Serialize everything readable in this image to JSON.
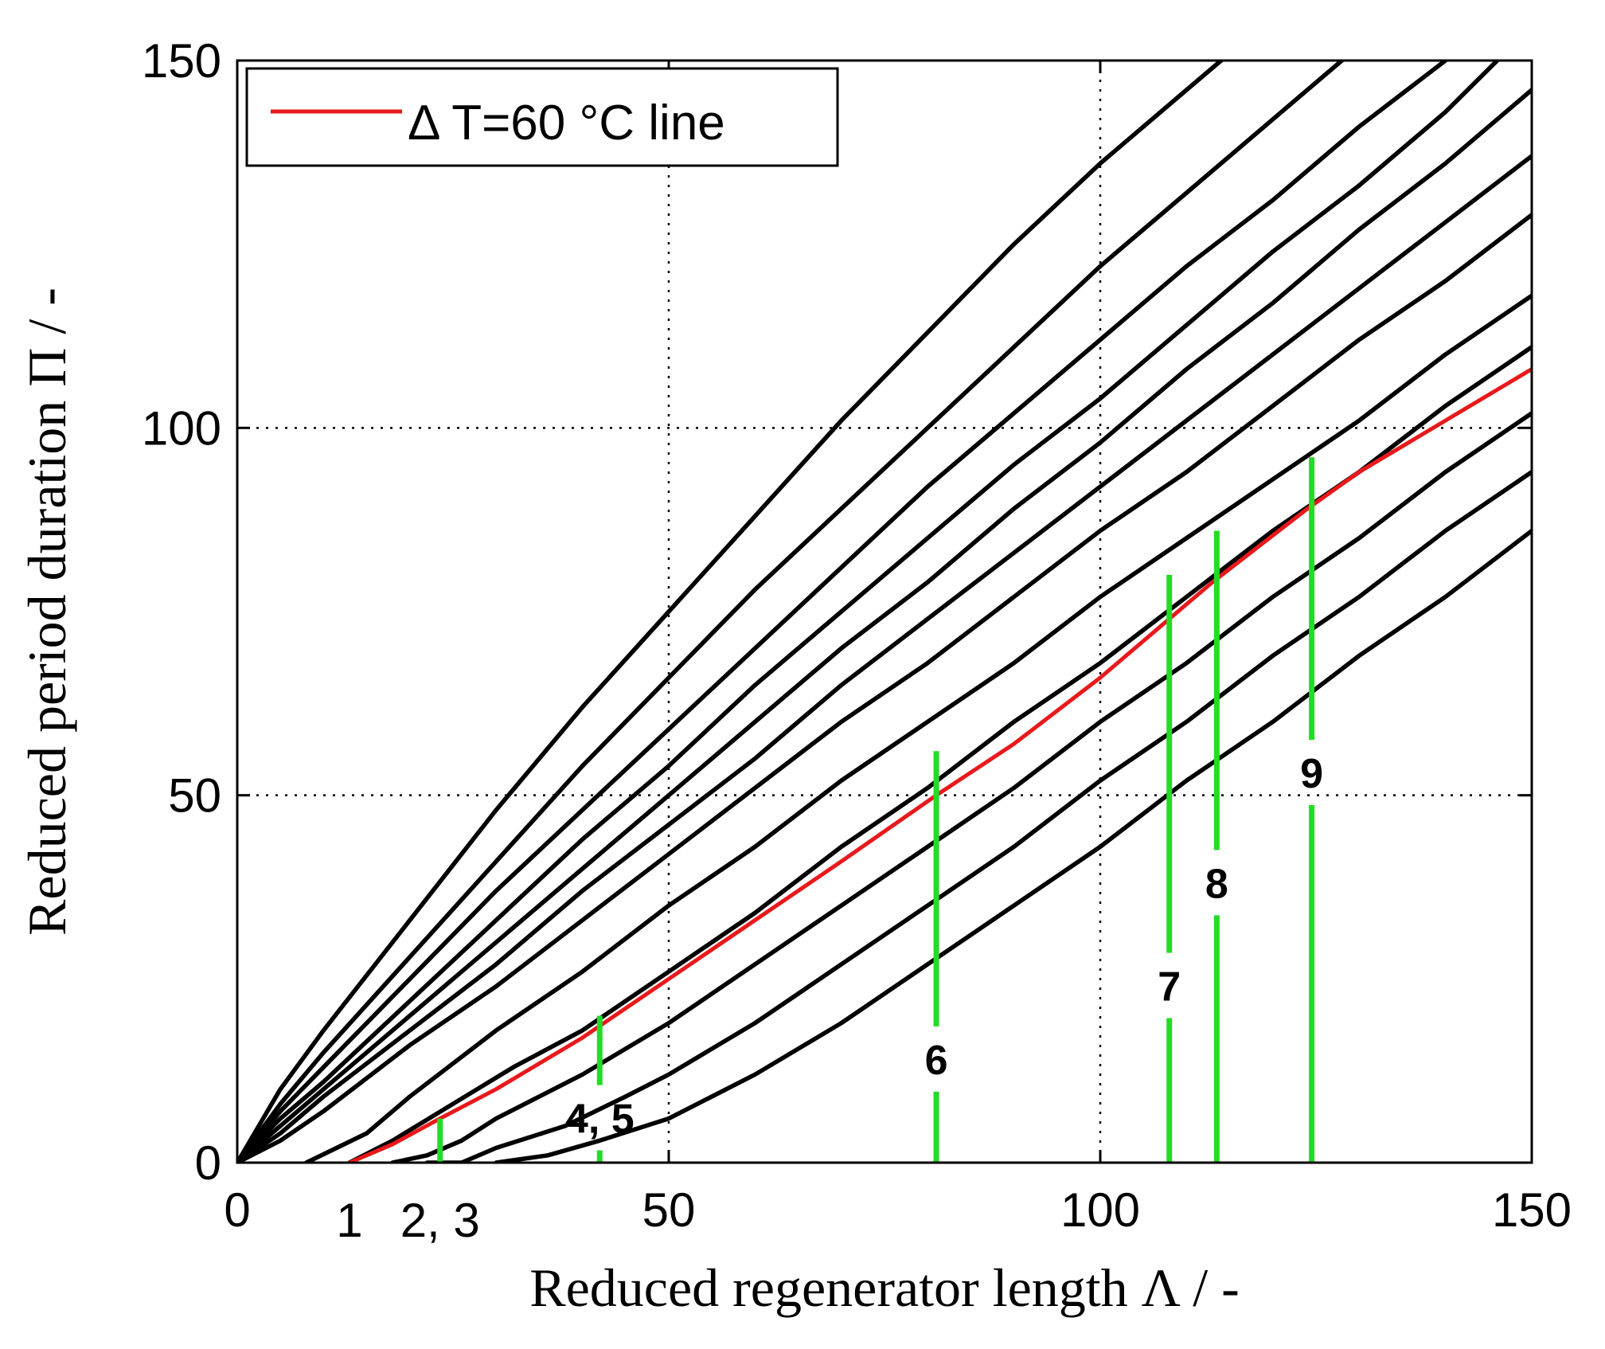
{
  "chart_data": {
    "type": "line",
    "title": "",
    "xlabel": "Reduced regenerator length Λ / -",
    "ylabel": "Reduced period duration Π / -",
    "xlim": [
      0,
      150
    ],
    "ylim": [
      0,
      150
    ],
    "xticks": [
      "0",
      "50",
      "100",
      "150"
    ],
    "xtick_values": [
      0,
      50,
      100,
      150
    ],
    "yticks": [
      "0",
      "50",
      "100",
      "150"
    ],
    "ytick_values": [
      0,
      50,
      100,
      150
    ],
    "grid": true,
    "legend": {
      "position": "top-left",
      "entries": [
        {
          "label": "Δ T=60 °C line",
          "color": "#e8191b"
        }
      ]
    },
    "colors": {
      "curves": "#000000",
      "highlight": "#e8191b",
      "markers": "#22dd22"
    },
    "series": [
      {
        "name": "curve-1",
        "color": "#000000",
        "points": [
          [
            0,
            0
          ],
          [
            5,
            10
          ],
          [
            10,
            18
          ],
          [
            20,
            33
          ],
          [
            30,
            48
          ],
          [
            40,
            62
          ],
          [
            50,
            75
          ],
          [
            60,
            88
          ],
          [
            70,
            101
          ],
          [
            80,
            113
          ],
          [
            90,
            125
          ],
          [
            100,
            136
          ],
          [
            110,
            146
          ],
          [
            114,
            150
          ]
        ]
      },
      {
        "name": "curve-2",
        "color": "#000000",
        "points": [
          [
            0,
            0
          ],
          [
            5,
            8
          ],
          [
            10,
            15
          ],
          [
            20,
            28
          ],
          [
            30,
            41
          ],
          [
            40,
            54
          ],
          [
            50,
            66
          ],
          [
            60,
            78
          ],
          [
            70,
            89
          ],
          [
            80,
            100
          ],
          [
            90,
            111
          ],
          [
            100,
            122
          ],
          [
            110,
            132
          ],
          [
            120,
            142
          ],
          [
            128,
            150
          ]
        ]
      },
      {
        "name": "curve-3",
        "color": "#000000",
        "points": [
          [
            0,
            0
          ],
          [
            5,
            7
          ],
          [
            10,
            13
          ],
          [
            20,
            25
          ],
          [
            30,
            37
          ],
          [
            40,
            48
          ],
          [
            50,
            59
          ],
          [
            60,
            70
          ],
          [
            70,
            81
          ],
          [
            80,
            92
          ],
          [
            90,
            102
          ],
          [
            100,
            112
          ],
          [
            110,
            122
          ],
          [
            120,
            131
          ],
          [
            130,
            141
          ],
          [
            140,
            150
          ]
        ]
      },
      {
        "name": "curve-4",
        "color": "#000000",
        "points": [
          [
            0,
            0
          ],
          [
            5,
            6
          ],
          [
            10,
            11
          ],
          [
            20,
            22
          ],
          [
            30,
            33
          ],
          [
            40,
            44
          ],
          [
            50,
            54
          ],
          [
            60,
            65
          ],
          [
            70,
            75
          ],
          [
            80,
            85
          ],
          [
            90,
            95
          ],
          [
            100,
            104
          ],
          [
            110,
            114
          ],
          [
            120,
            124
          ],
          [
            130,
            133
          ],
          [
            140,
            143
          ],
          [
            146,
            150
          ]
        ]
      },
      {
        "name": "curve-5",
        "color": "#000000",
        "points": [
          [
            0,
            0
          ],
          [
            5,
            5
          ],
          [
            10,
            10
          ],
          [
            20,
            20
          ],
          [
            30,
            30
          ],
          [
            40,
            40
          ],
          [
            50,
            50
          ],
          [
            60,
            60
          ],
          [
            70,
            70
          ],
          [
            80,
            79
          ],
          [
            90,
            89
          ],
          [
            100,
            98
          ],
          [
            110,
            108
          ],
          [
            120,
            117
          ],
          [
            130,
            127
          ],
          [
            140,
            136
          ],
          [
            150,
            146
          ]
        ]
      },
      {
        "name": "curve-6",
        "color": "#000000",
        "points": [
          [
            0,
            0
          ],
          [
            5,
            4
          ],
          [
            10,
            9
          ],
          [
            20,
            18
          ],
          [
            30,
            27
          ],
          [
            40,
            37
          ],
          [
            50,
            46
          ],
          [
            60,
            55
          ],
          [
            70,
            65
          ],
          [
            80,
            74
          ],
          [
            90,
            83
          ],
          [
            100,
            92
          ],
          [
            110,
            101
          ],
          [
            120,
            110
          ],
          [
            130,
            119
          ],
          [
            140,
            128
          ],
          [
            150,
            137
          ]
        ]
      },
      {
        "name": "curve-7",
        "color": "#000000",
        "points": [
          [
            0,
            0
          ],
          [
            5,
            3
          ],
          [
            10,
            7
          ],
          [
            20,
            16
          ],
          [
            30,
            24
          ],
          [
            40,
            33
          ],
          [
            50,
            42
          ],
          [
            60,
            51
          ],
          [
            70,
            60
          ],
          [
            80,
            68
          ],
          [
            90,
            77
          ],
          [
            100,
            86
          ],
          [
            110,
            94
          ],
          [
            120,
            103
          ],
          [
            130,
            112
          ],
          [
            140,
            120
          ],
          [
            150,
            129
          ]
        ]
      },
      {
        "name": "curve-8",
        "color": "#000000",
        "points": [
          [
            8,
            0
          ],
          [
            15,
            4
          ],
          [
            20,
            9
          ],
          [
            30,
            18
          ],
          [
            40,
            26
          ],
          [
            50,
            35
          ],
          [
            60,
            43
          ],
          [
            70,
            52
          ],
          [
            80,
            60
          ],
          [
            90,
            68
          ],
          [
            100,
            77
          ],
          [
            110,
            85
          ],
          [
            120,
            93
          ],
          [
            130,
            101
          ],
          [
            140,
            110
          ],
          [
            150,
            118
          ]
        ]
      },
      {
        "name": "curve-9",
        "color": "#000000",
        "points": [
          [
            13,
            0
          ],
          [
            18,
            3
          ],
          [
            25,
            8
          ],
          [
            32,
            13
          ],
          [
            40,
            18
          ],
          [
            50,
            26
          ],
          [
            60,
            34
          ],
          [
            70,
            43
          ],
          [
            80,
            51
          ],
          [
            90,
            60
          ],
          [
            100,
            68
          ],
          [
            110,
            77
          ],
          [
            120,
            86
          ],
          [
            130,
            94
          ],
          [
            140,
            103
          ],
          [
            150,
            111
          ]
        ]
      },
      {
        "name": "curve-10",
        "color": "#000000",
        "points": [
          [
            18,
            0
          ],
          [
            22,
            1
          ],
          [
            26,
            3
          ],
          [
            30,
            6
          ],
          [
            40,
            12
          ],
          [
            50,
            19
          ],
          [
            60,
            27
          ],
          [
            70,
            35
          ],
          [
            80,
            43
          ],
          [
            90,
            51
          ],
          [
            100,
            60
          ],
          [
            110,
            68
          ],
          [
            120,
            77
          ],
          [
            130,
            85
          ],
          [
            140,
            94
          ],
          [
            150,
            102
          ]
        ]
      },
      {
        "name": "curve-11",
        "color": "#000000",
        "points": [
          [
            22,
            0
          ],
          [
            26,
            0
          ],
          [
            30,
            2
          ],
          [
            38,
            5
          ],
          [
            45,
            9
          ],
          [
            50,
            12
          ],
          [
            60,
            19
          ],
          [
            70,
            27
          ],
          [
            80,
            35
          ],
          [
            90,
            43
          ],
          [
            100,
            52
          ],
          [
            110,
            60
          ],
          [
            120,
            69
          ],
          [
            130,
            77
          ],
          [
            140,
            86
          ],
          [
            150,
            94
          ]
        ]
      },
      {
        "name": "curve-12",
        "color": "#000000",
        "points": [
          [
            30,
            0
          ],
          [
            36,
            1
          ],
          [
            42,
            3
          ],
          [
            50,
            6
          ],
          [
            60,
            12
          ],
          [
            70,
            19
          ],
          [
            80,
            27
          ],
          [
            90,
            35
          ],
          [
            100,
            43
          ],
          [
            110,
            52
          ],
          [
            120,
            60
          ],
          [
            130,
            69
          ],
          [
            140,
            77
          ],
          [
            150,
            86
          ]
        ]
      },
      {
        "name": "ΔT=60 °C line",
        "color": "#e8191b",
        "highlight": true,
        "points": [
          [
            13,
            0
          ],
          [
            18,
            2.5
          ],
          [
            23.5,
            6
          ],
          [
            30,
            10
          ],
          [
            40,
            17
          ],
          [
            50,
            25
          ],
          [
            60,
            33
          ],
          [
            70,
            41
          ],
          [
            81,
            50
          ],
          [
            90,
            57
          ],
          [
            100,
            66
          ],
          [
            108,
            74
          ],
          [
            113,
            79
          ],
          [
            124,
            89
          ],
          [
            130,
            94
          ],
          [
            140,
            101
          ],
          [
            150,
            108
          ]
        ]
      }
    ],
    "vertical_markers": [
      {
        "label": "1",
        "x": 13,
        "y_top": 0,
        "label_pos": "below-axis"
      },
      {
        "label": "2, 3",
        "x": 23.5,
        "y_top": 6,
        "label_pos": "below-axis"
      },
      {
        "label": "4, 5",
        "x": 42,
        "y_top": 20,
        "label_pos": "inside",
        "label_y": 6
      },
      {
        "label": "6",
        "x": 81,
        "y_top": 56,
        "label_pos": "inside",
        "label_y": 14
      },
      {
        "label": "7",
        "x": 108,
        "y_top": 80,
        "label_pos": "inside",
        "label_y": 24
      },
      {
        "label": "8",
        "x": 113.5,
        "y_top": 86,
        "label_pos": "inside",
        "label_y": 38
      },
      {
        "label": "9",
        "x": 124.5,
        "y_top": 96,
        "label_pos": "inside",
        "label_y": 53
      }
    ]
  }
}
